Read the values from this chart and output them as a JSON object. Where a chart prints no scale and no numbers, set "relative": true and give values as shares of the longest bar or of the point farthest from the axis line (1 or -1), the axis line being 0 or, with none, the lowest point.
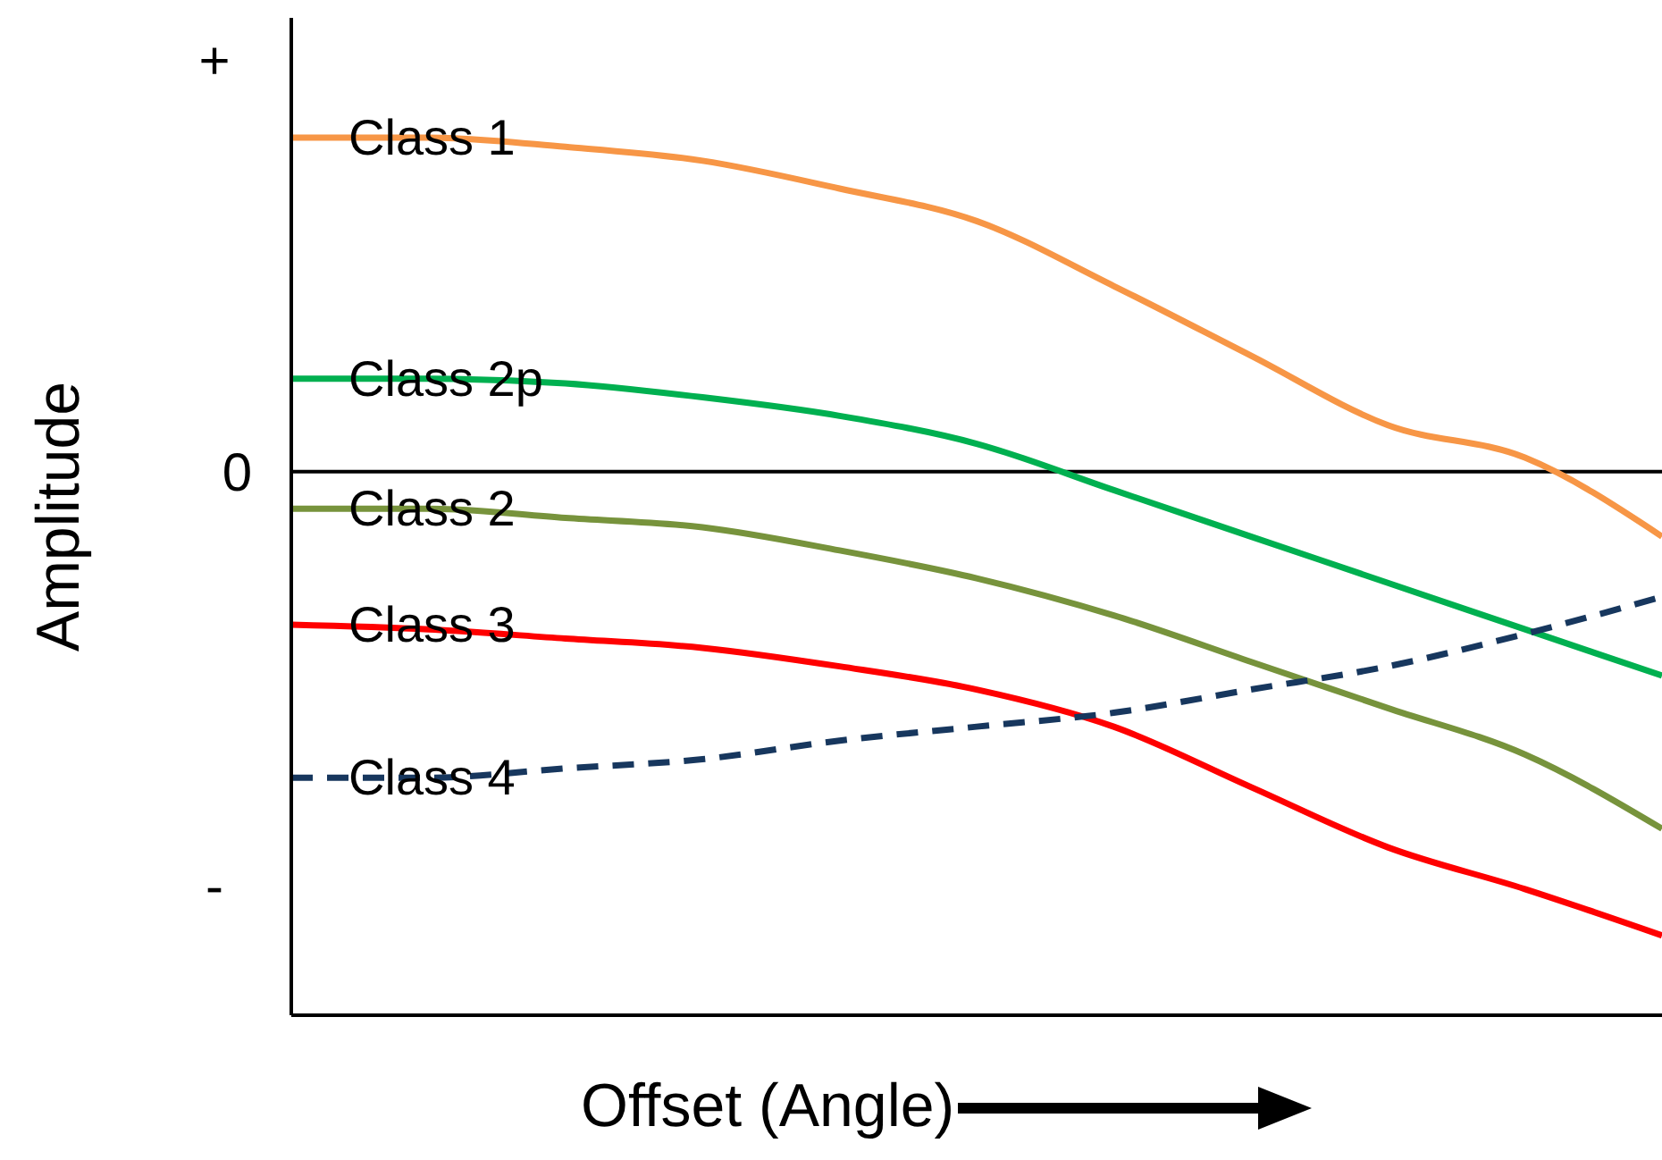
{
  "chart_data": {
    "type": "line",
    "relative": true,
    "xlabel": "Offset (Angle)",
    "ylabel": "Amplitude",
    "categories": [
      null,
      null,
      null,
      null,
      null,
      null,
      null,
      null,
      null,
      null,
      null
    ],
    "series": [
      {
        "name": "Class 1",
        "color": "#f79646",
        "values": [
          0.72,
          0.72,
          0.7,
          0.67,
          0.61,
          0.54,
          0.4,
          0.25,
          0.1,
          0.03,
          -0.14
        ]
      },
      {
        "name": "Class 2p",
        "color": "#00b050",
        "values": [
          0.2,
          0.2,
          0.19,
          0.16,
          0.12,
          0.06,
          -0.04,
          -0.14,
          -0.24,
          -0.34,
          -0.44
        ]
      },
      {
        "name": "Class 2",
        "color": "#77933c",
        "values": [
          -0.08,
          -0.08,
          -0.1,
          -0.12,
          -0.17,
          -0.23,
          -0.31,
          -0.41,
          -0.51,
          -0.61,
          -0.77
        ]
      },
      {
        "name": "Class 3",
        "color": "#ff0000",
        "values": [
          -0.33,
          -0.34,
          -0.36,
          -0.38,
          -0.42,
          -0.47,
          -0.55,
          -0.68,
          -0.81,
          -0.9,
          -1
        ]
      },
      {
        "name": "Class 4",
        "color": "#17375e",
        "line_style": "dashed",
        "values": [
          -0.66,
          -0.66,
          -0.64,
          -0.62,
          -0.58,
          -0.55,
          -0.52,
          -0.47,
          -0.42,
          -0.35,
          -0.27
        ]
      }
    ],
    "ref_lines": [
      {
        "axis": "y",
        "value": 0,
        "label": "0",
        "color": "#000000"
      }
    ],
    "annotations": [
      "+",
      "-"
    ],
    "grid": false,
    "legend": false,
    "marker": "none"
  }
}
